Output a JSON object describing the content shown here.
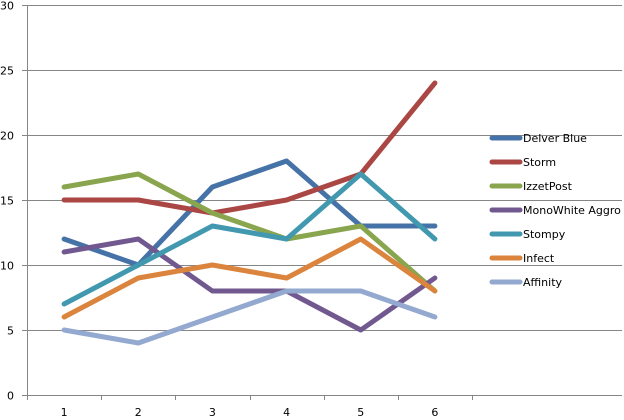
{
  "chart_data": {
    "type": "line",
    "title": "",
    "xlabel": "",
    "ylabel": "",
    "ylim": [
      0,
      30
    ],
    "yticks": [
      0,
      5,
      10,
      15,
      20,
      25,
      30
    ],
    "grid": true,
    "legend_position": "right",
    "categories": [
      "1",
      "2",
      "3",
      "4",
      "5",
      "6"
    ],
    "series": [
      {
        "name": "Delver Blue",
        "color": "#4572a7",
        "values": [
          12,
          10,
          16,
          18,
          13,
          13
        ]
      },
      {
        "name": "Storm",
        "color": "#aa4643",
        "values": [
          15,
          15,
          14,
          15,
          17,
          24
        ]
      },
      {
        "name": "IzzetPost",
        "color": "#89a54e",
        "values": [
          16,
          17,
          14,
          12,
          13,
          8
        ]
      },
      {
        "name": "MonoWhite Aggro",
        "color": "#71588f",
        "values": [
          11,
          12,
          8,
          8,
          5,
          9
        ]
      },
      {
        "name": "Stompy",
        "color": "#4198af",
        "values": [
          7,
          10,
          13,
          12,
          17,
          12
        ]
      },
      {
        "name": "Infect",
        "color": "#db843d",
        "values": [
          6,
          9,
          10,
          9,
          12,
          8
        ]
      },
      {
        "name": "Affinity",
        "color": "#93a9cf",
        "values": [
          5,
          4,
          6,
          8,
          8,
          6
        ]
      }
    ]
  }
}
